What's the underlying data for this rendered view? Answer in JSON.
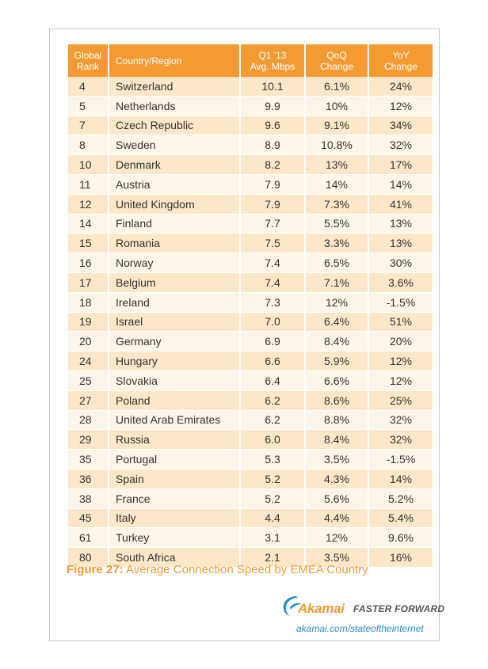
{
  "table": {
    "headers": {
      "rank_line1": "Global",
      "rank_line2": "Rank",
      "country": "Country/Region",
      "speed_line1": "Q1 '13",
      "speed_line2": "Avg. Mbps",
      "qoq_line1": "QoQ",
      "qoq_line2": "Change",
      "yoy_line1": "YoY",
      "yoy_line2": "Change"
    },
    "rows": [
      {
        "rank": "4",
        "country": "Switzerland",
        "speed": "10.1",
        "qoq": "6.1%",
        "yoy": "24%"
      },
      {
        "rank": "5",
        "country": "Netherlands",
        "speed": "9.9",
        "qoq": "10%",
        "yoy": "12%"
      },
      {
        "rank": "7",
        "country": "Czech Republic",
        "speed": "9.6",
        "qoq": "9.1%",
        "yoy": "34%"
      },
      {
        "rank": "8",
        "country": "Sweden",
        "speed": "8.9",
        "qoq": "10.8%",
        "yoy": "32%"
      },
      {
        "rank": "10",
        "country": "Denmark",
        "speed": "8.2",
        "qoq": "13%",
        "yoy": "17%"
      },
      {
        "rank": "11",
        "country": "Austria",
        "speed": "7.9",
        "qoq": "14%",
        "yoy": "14%"
      },
      {
        "rank": "12",
        "country": "United Kingdom",
        "speed": "7.9",
        "qoq": "7.3%",
        "yoy": "41%"
      },
      {
        "rank": "14",
        "country": "Finland",
        "speed": "7.7",
        "qoq": "5.5%",
        "yoy": "13%"
      },
      {
        "rank": "15",
        "country": "Romania",
        "speed": "7.5",
        "qoq": "3.3%",
        "yoy": "13%"
      },
      {
        "rank": "16",
        "country": "Norway",
        "speed": "7.4",
        "qoq": "6.5%",
        "yoy": "30%"
      },
      {
        "rank": "17",
        "country": "Belgium",
        "speed": "7.4",
        "qoq": "7.1%",
        "yoy": "3.6%"
      },
      {
        "rank": "18",
        "country": "Ireland",
        "speed": "7.3",
        "qoq": "12%",
        "yoy": "-1.5%"
      },
      {
        "rank": "19",
        "country": "Israel",
        "speed": "7.0",
        "qoq": "6.4%",
        "yoy": "51%"
      },
      {
        "rank": "20",
        "country": "Germany",
        "speed": "6.9",
        "qoq": "8.4%",
        "yoy": "20%"
      },
      {
        "rank": "24",
        "country": "Hungary",
        "speed": "6.6",
        "qoq": "5.9%",
        "yoy": "12%"
      },
      {
        "rank": "25",
        "country": "Slovakia",
        "speed": "6.4",
        "qoq": "6.6%",
        "yoy": "12%"
      },
      {
        "rank": "27",
        "country": "Poland",
        "speed": "6.2",
        "qoq": "8.6%",
        "yoy": "25%"
      },
      {
        "rank": "28",
        "country": "United Arab Emirates",
        "speed": "6.2",
        "qoq": "8.8%",
        "yoy": "32%"
      },
      {
        "rank": "29",
        "country": "Russia",
        "speed": "6.0",
        "qoq": "8.4%",
        "yoy": "32%"
      },
      {
        "rank": "35",
        "country": "Portugal",
        "speed": "5.3",
        "qoq": "3.5%",
        "yoy": "-1.5%"
      },
      {
        "rank": "36",
        "country": "Spain",
        "speed": "5.2",
        "qoq": "4.3%",
        "yoy": "14%"
      },
      {
        "rank": "38",
        "country": "France",
        "speed": "5.2",
        "qoq": "5.6%",
        "yoy": "5.2%"
      },
      {
        "rank": "45",
        "country": "Italy",
        "speed": "4.4",
        "qoq": "4.4%",
        "yoy": "5.4%"
      },
      {
        "rank": "61",
        "country": "Turkey",
        "speed": "3.1",
        "qoq": "12%",
        "yoy": "9.6%"
      },
      {
        "rank": "80",
        "country": "South Africa",
        "speed": "2.1",
        "qoq": "3.5%",
        "yoy": "16%"
      }
    ]
  },
  "caption": {
    "figure": "Figure 27:",
    "text": "Average Connection Speed by EMEA Country"
  },
  "branding": {
    "logo_name": "Akamai",
    "logo_icon": "akamai-swoosh-icon",
    "tagline": "FASTER FORWARD",
    "url": "akamai.com/stateoftheinternet"
  },
  "colors": {
    "accent": "#f39a33",
    "row_odd": "#fde7c9",
    "row_even": "#fef5ea",
    "link": "#2e8ec9",
    "logo_blue": "#1f8fd1"
  }
}
